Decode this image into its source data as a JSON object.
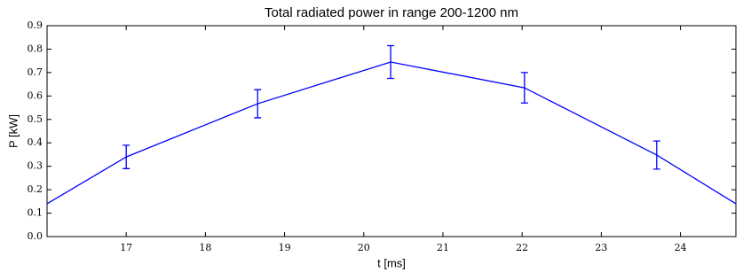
{
  "chart_data": {
    "type": "line",
    "title": "Total radiated power in range 200-1200 nm",
    "x_label": "t [ms]",
    "y_label": "P [kW]",
    "x": [
      16,
      17,
      18.66,
      20.34,
      22.03,
      23.7,
      24.7
    ],
    "series": [
      {
        "color": "#0000ff",
        "values": [
          0.14,
          0.34,
          0.567,
          0.745,
          0.635,
          0.348,
          0.14
        ],
        "errors": [
          null,
          0.05,
          0.06,
          0.07,
          0.065,
          0.06,
          null
        ]
      }
    ],
    "xlim": [
      16,
      24.7
    ],
    "ylim": [
      0,
      0.9
    ],
    "xticks": [
      17,
      18,
      19,
      20,
      21,
      22,
      23,
      24
    ],
    "yticks": [
      {
        "value": 0,
        "label": "0.0"
      },
      0.1,
      0.2,
      0.3,
      0.4,
      0.5,
      0.6,
      0.7,
      0.8,
      0.9
    ],
    "grid": false
  }
}
